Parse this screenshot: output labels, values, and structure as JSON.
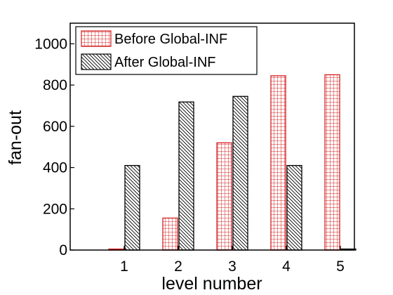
{
  "chart_data": {
    "type": "bar",
    "xlabel": "level number",
    "ylabel": "fan-out",
    "categories": [
      "1",
      "2",
      "3",
      "4",
      "5"
    ],
    "ylim": [
      0,
      1100
    ],
    "yticks": [
      0,
      200,
      400,
      600,
      800,
      1000
    ],
    "legend_position": "top-left",
    "grid": false,
    "series": [
      {
        "name": "Before Global-INF",
        "values": [
          5,
          155,
          520,
          845,
          850
        ],
        "color": "#d62020",
        "pattern": "grid"
      },
      {
        "name": "After Global-INF",
        "values": [
          410,
          718,
          745,
          410,
          5
        ],
        "color": "#000000",
        "pattern": "diagonal-hatch"
      }
    ]
  }
}
